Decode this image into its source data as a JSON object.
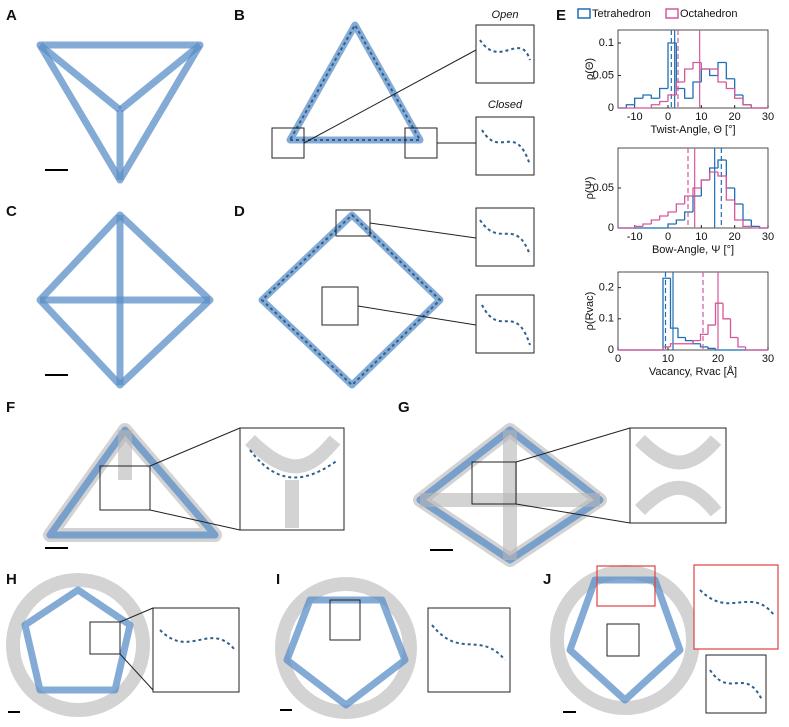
{
  "panels": [
    "A",
    "B",
    "C",
    "D",
    "E",
    "F",
    "G",
    "H",
    "I",
    "J"
  ],
  "insets": [
    "Open",
    "Closed"
  ],
  "chart_data": [
    {
      "type": "histogram",
      "xlabel": "Twist-Angle, Θ [°]",
      "ylabel": "ρ(Θ)",
      "bins": [
        -15,
        -12.5,
        -10,
        -7.5,
        -5,
        -2.5,
        0,
        2.5,
        5,
        7.5,
        10,
        12.5,
        15,
        17.5,
        20,
        22.5,
        25,
        27.5,
        30
      ],
      "xlim": [
        -15,
        30
      ],
      "xticks": [
        -10,
        0,
        10,
        20,
        30
      ],
      "ylim": [
        0,
        0.12
      ],
      "yticks": [
        0,
        0.05,
        0.1
      ],
      "series": [
        {
          "name": "Tetrahedron",
          "color": "#1f6fb5",
          "values": [
            0,
            0.005,
            0.015,
            0.02,
            0.015,
            0.03,
            0.1,
            0.03,
            0.015,
            0.04,
            0.06,
            0.05,
            0.07,
            0.045,
            0.02,
            0.005,
            0,
            0
          ],
          "solid": 2,
          "dashed": 1
        },
        {
          "name": "Octahedron",
          "color": "#d6589a",
          "values": [
            0,
            0,
            0,
            0,
            0.005,
            0.01,
            0.02,
            0.04,
            0.06,
            0.07,
            0.06,
            0.06,
            0.04,
            0.03,
            0.015,
            0.005,
            0,
            0
          ],
          "solid": 9.5,
          "dashed": 3
        }
      ]
    },
    {
      "type": "histogram",
      "xlabel": "Bow-Angle, Ψ [°]",
      "ylabel": "ρ(Ψ)",
      "bins": [
        -15,
        -12.5,
        -10,
        -7.5,
        -5,
        -2.5,
        0,
        2.5,
        5,
        7.5,
        10,
        12.5,
        15,
        17.5,
        20,
        22.5,
        25,
        27.5,
        30
      ],
      "xlim": [
        -15,
        30
      ],
      "xticks": [
        -10,
        0,
        10,
        20,
        30
      ],
      "ylim": [
        0,
        0.1
      ],
      "yticks": [
        0,
        0.05
      ],
      "series": [
        {
          "name": "Tetrahedron",
          "color": "#1f6fb5",
          "values": [
            0,
            0,
            0,
            0,
            0,
            0,
            0.005,
            0.01,
            0.02,
            0.04,
            0.06,
            0.075,
            0.085,
            0.05,
            0.03,
            0.01,
            0.002,
            0
          ],
          "solid": 14,
          "dashed": 16
        },
        {
          "name": "Octahedron",
          "color": "#d6589a",
          "values": [
            0,
            0,
            0.002,
            0.005,
            0.01,
            0.015,
            0.02,
            0.03,
            0.04,
            0.05,
            0.06,
            0.07,
            0.065,
            0.035,
            0.01,
            0.002,
            0,
            0
          ],
          "solid": 8,
          "dashed": 6
        }
      ]
    },
    {
      "type": "histogram",
      "xlabel": "Vacancy, Rvac [Å]",
      "ylabel": "ρ(Rvac)",
      "bins": [
        0,
        1.5,
        3,
        4.5,
        6,
        7.5,
        9,
        10.5,
        12,
        13.5,
        15,
        16.5,
        18,
        19.5,
        21,
        22.5,
        24,
        25.5,
        27,
        28.5,
        30
      ],
      "xlim": [
        0,
        30
      ],
      "xticks": [
        0,
        10,
        20,
        30
      ],
      "ylim": [
        0,
        0.25
      ],
      "yticks": [
        0,
        0.1,
        0.2
      ],
      "series": [
        {
          "name": "Tetrahedron",
          "color": "#1f6fb5",
          "values": [
            0,
            0,
            0,
            0,
            0,
            0,
            0.23,
            0.07,
            0.04,
            0.03,
            0.02,
            0.01,
            0.005,
            0,
            0,
            0,
            0,
            0,
            0,
            0
          ],
          "solid": 11,
          "dashed": 9.5
        },
        {
          "name": "Octahedron",
          "color": "#d6589a",
          "values": [
            0,
            0,
            0,
            0,
            0,
            0,
            0.01,
            0.02,
            0.02,
            0.02,
            0.03,
            0.05,
            0.08,
            0.15,
            0.1,
            0.04,
            0.01,
            0,
            0,
            0
          ],
          "solid": 20,
          "dashed": 17
        }
      ]
    }
  ]
}
